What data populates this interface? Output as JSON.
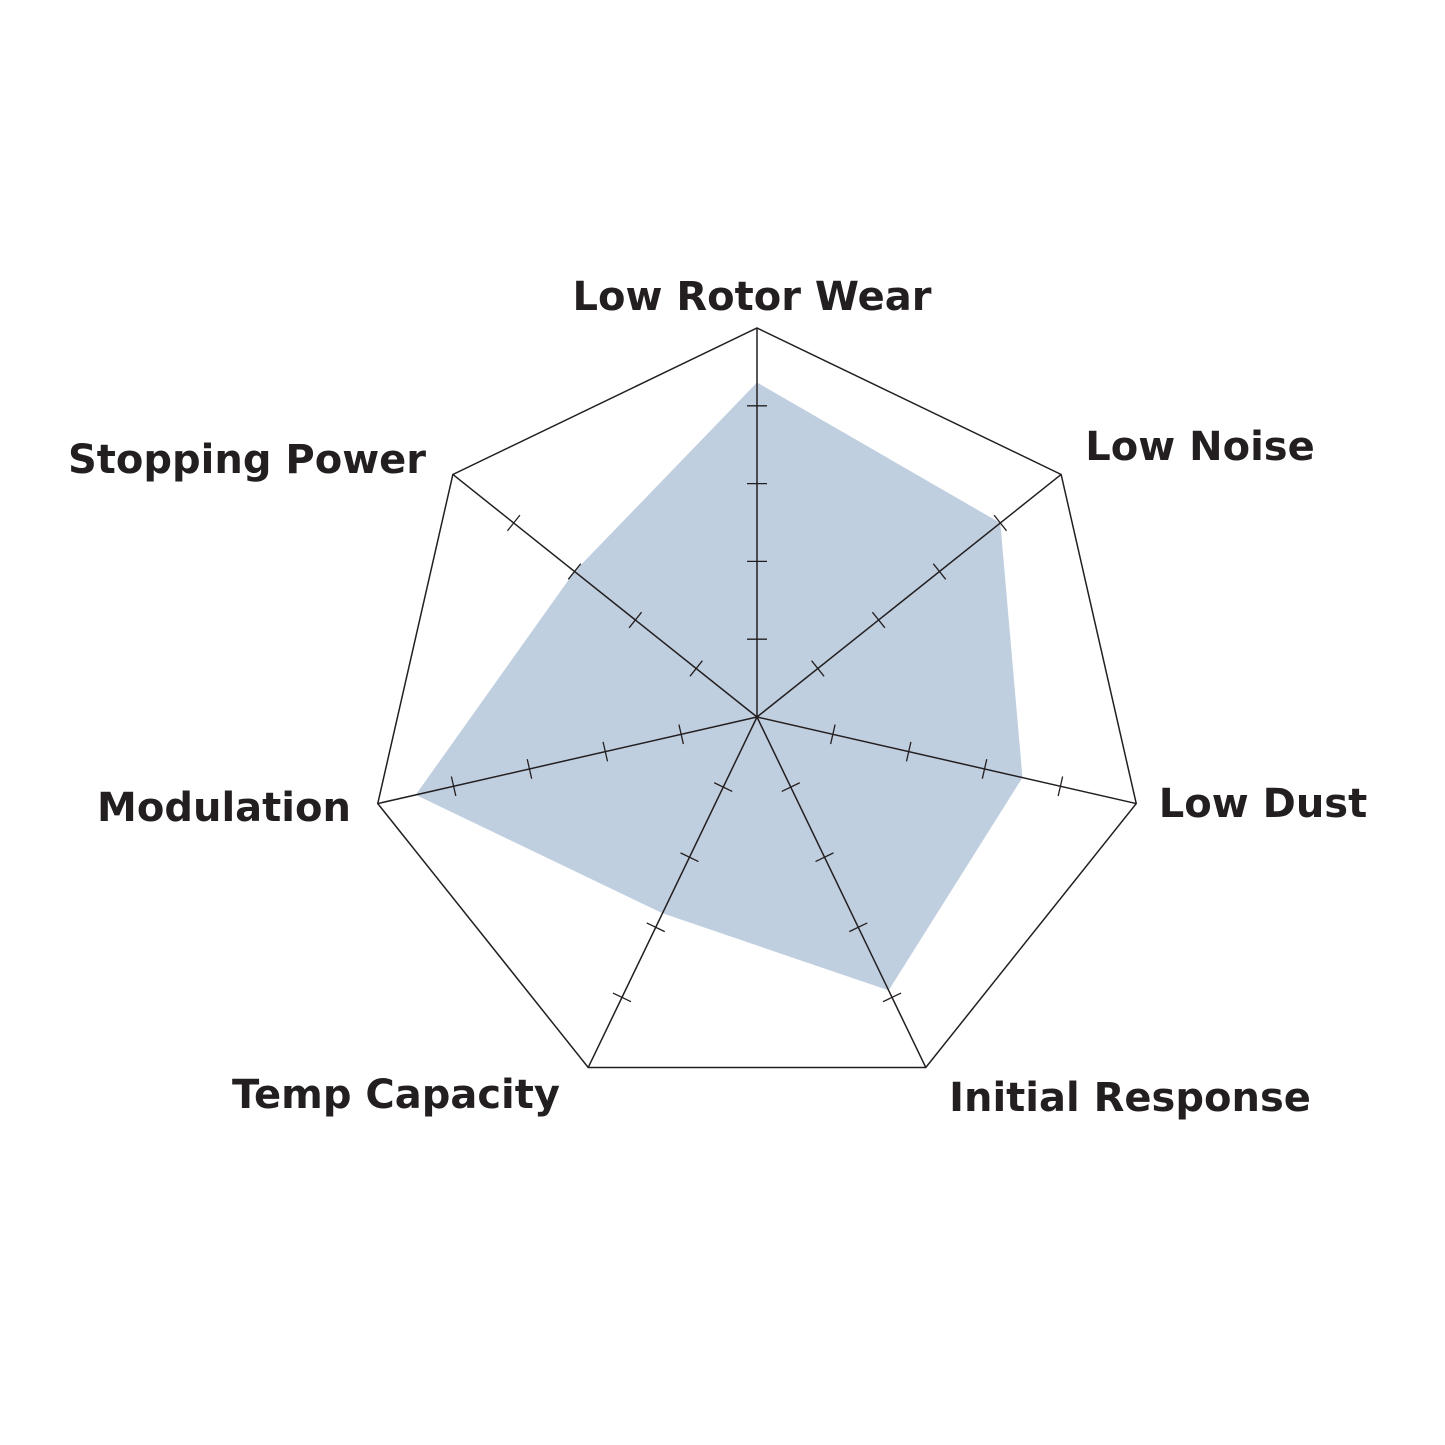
{
  "chart_data": {
    "type": "radar",
    "title": "",
    "axes": [
      "Low Rotor Wear",
      "Low Noise",
      "Low Dust",
      "Initial Response",
      "Temp Capacity",
      "Modulation",
      "Stopping Power"
    ],
    "range": [
      0,
      5
    ],
    "tick_count": 5,
    "series": [
      {
        "values": [
          4.3,
          4.0,
          3.5,
          3.9,
          2.8,
          4.5,
          3.0
        ],
        "color": "#c0cfe0"
      }
    ],
    "grid_color": "#231f20",
    "grid": "outer polygon and spokes with tick marks",
    "legend": "none"
  }
}
